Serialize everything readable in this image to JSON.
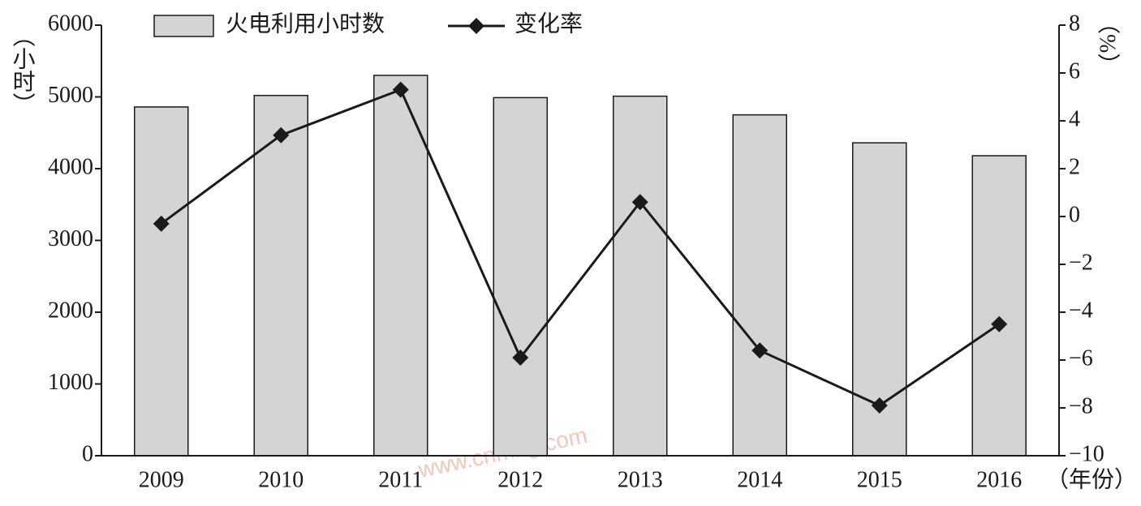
{
  "chart_data": {
    "type": "bar_line",
    "categories": [
      "2009",
      "2010",
      "2011",
      "2012",
      "2013",
      "2014",
      "2015",
      "2016"
    ],
    "series": [
      {
        "name": "火电利用小时数",
        "type": "bar",
        "color": "#d3d4d6",
        "values": [
          4860,
          5020,
          5300,
          4990,
          5010,
          4750,
          4360,
          4180
        ]
      },
      {
        "name": "变化率",
        "type": "line",
        "axis": "y2",
        "color": "#1a1a1a",
        "values": [
          -0.3,
          3.4,
          5.3,
          -5.9,
          0.6,
          -5.6,
          -7.9,
          -4.5
        ]
      }
    ],
    "ylabel": "（小时）",
    "y2label": "（%）",
    "xlabel": "（年份）",
    "ylim": [
      0,
      6000
    ],
    "yticks": [
      0,
      1000,
      2000,
      3000,
      4000,
      5000,
      6000
    ],
    "y2lim": [
      -10,
      8
    ],
    "y2ticks": [
      {
        "value": -10,
        "label": "−10"
      },
      {
        "value": -8,
        "label": "−8"
      },
      {
        "value": -6,
        "label": "−6"
      },
      {
        "value": -4,
        "label": "−4"
      },
      {
        "value": -2,
        "label": "−2"
      },
      0,
      2,
      4,
      6,
      8
    ],
    "watermark": "www.cnmhg.com"
  }
}
